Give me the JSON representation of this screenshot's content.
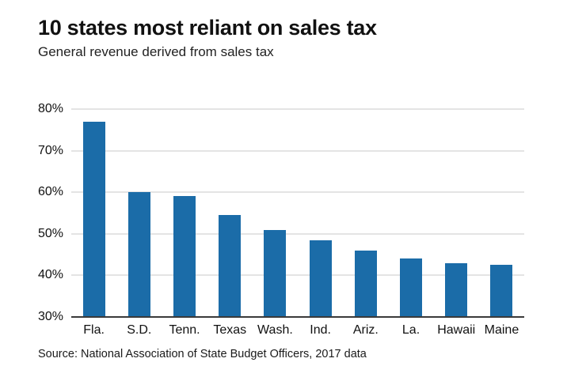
{
  "header": {
    "title": "10 states most reliant on sales tax",
    "subtitle": "General revenue derived from sales tax"
  },
  "footer": {
    "source": "Source: National Association of State Budget Officers, 2017 data"
  },
  "chart_data": {
    "type": "bar",
    "title": "10 states most reliant on sales tax",
    "subtitle": "General revenue derived from sales tax",
    "categories": [
      "Fla.",
      "S.D.",
      "Tenn.",
      "Texas",
      "Wash.",
      "Ind.",
      "Ariz.",
      "La.",
      "Hawaii",
      "Maine"
    ],
    "values": [
      77,
      60,
      59,
      54.5,
      51,
      48.5,
      46,
      44,
      43,
      42.5
    ],
    "ylabel": "",
    "xlabel": "",
    "ylim": [
      30,
      80
    ],
    "yticks": [
      30,
      40,
      50,
      60,
      70,
      80
    ],
    "ytick_suffix": "%",
    "grid": true,
    "legend": "none",
    "bar_color": "#1b6ca8",
    "gridline_color": "#c9c9c9",
    "axis_color": "#3a3a3a"
  }
}
